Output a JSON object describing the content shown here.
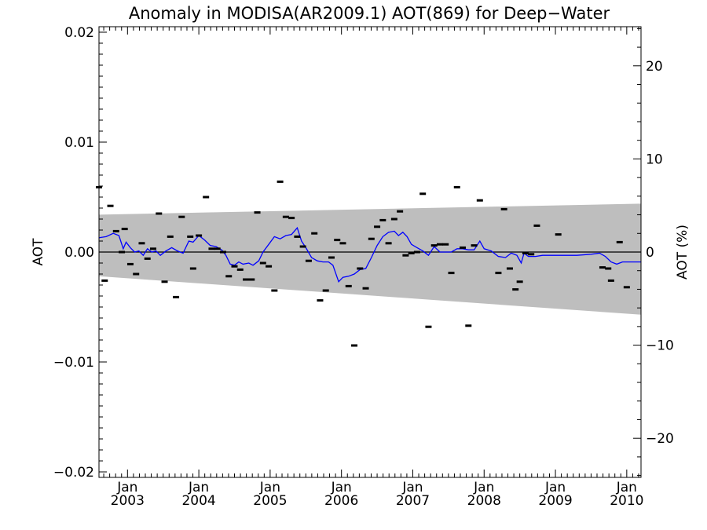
{
  "chart_data": {
    "type": "line",
    "title": "Anomaly in MODISA(AR2009.1) AOT(869) for Deep−Water",
    "ylabel_left": "AOT",
    "ylabel_right": "AOT (%)",
    "xlim": [
      2002.6,
      2010.2
    ],
    "ylim_left": [
      -0.0205,
      0.0205
    ],
    "ylim_right": [
      -24.2,
      24.2
    ],
    "x_ticks": [
      {
        "x": 2003.0,
        "month": "Jan",
        "year": "2003"
      },
      {
        "x": 2004.0,
        "month": "Jan",
        "year": "2004"
      },
      {
        "x": 2005.0,
        "month": "Jan",
        "year": "2005"
      },
      {
        "x": 2006.0,
        "month": "Jan",
        "year": "2006"
      },
      {
        "x": 2007.0,
        "month": "Jan",
        "year": "2007"
      },
      {
        "x": 2008.0,
        "month": "Jan",
        "year": "2008"
      },
      {
        "x": 2009.0,
        "month": "Jan",
        "year": "2009"
      },
      {
        "x": 2010.0,
        "month": "Jan",
        "year": "2010"
      }
    ],
    "y_ticks_left": [
      {
        "v": 0.02,
        "label": "0.02"
      },
      {
        "v": 0.01,
        "label": "0.01"
      },
      {
        "v": 0.0,
        "label": "0.00"
      },
      {
        "v": -0.01,
        "label": "−0.01"
      },
      {
        "v": -0.02,
        "label": "−0.02"
      }
    ],
    "y_ticks_right": [
      {
        "v": 20,
        "label": "20"
      },
      {
        "v": 10,
        "label": "10"
      },
      {
        "v": 0,
        "label": "0"
      },
      {
        "v": -10,
        "label": "−10"
      },
      {
        "v": -20,
        "label": "−20"
      }
    ],
    "band": {
      "x": [
        2002.6,
        2010.2
      ],
      "upper": [
        0.0034,
        0.0044
      ],
      "lower": [
        -0.0022,
        -0.0057
      ]
    },
    "points": [
      [
        2002.6,
        0.0059
      ],
      [
        2002.68,
        -0.0026
      ],
      [
        2002.76,
        0.0042
      ],
      [
        2002.84,
        0.0019
      ],
      [
        2002.92,
        0.0
      ],
      [
        2002.96,
        0.0021
      ],
      [
        2003.04,
        -0.0011
      ],
      [
        2003.12,
        -0.002
      ],
      [
        2003.2,
        0.0008
      ],
      [
        2003.28,
        -0.0006
      ],
      [
        2003.36,
        0.0003
      ],
      [
        2003.44,
        0.0035
      ],
      [
        2003.52,
        -0.0027
      ],
      [
        2003.6,
        0.0014
      ],
      [
        2003.68,
        -0.0041
      ],
      [
        2003.76,
        0.0032
      ],
      [
        2003.88,
        0.0014
      ],
      [
        2003.92,
        -0.0015
      ],
      [
        2004.0,
        0.0015
      ],
      [
        2004.1,
        0.005
      ],
      [
        2004.18,
        0.0003
      ],
      [
        2004.26,
        0.0003
      ],
      [
        2004.34,
        0.0
      ],
      [
        2004.42,
        -0.0022
      ],
      [
        2004.5,
        -0.0013
      ],
      [
        2004.58,
        -0.0016
      ],
      [
        2004.66,
        -0.0025
      ],
      [
        2004.74,
        -0.0025
      ],
      [
        2004.82,
        0.0036
      ],
      [
        2004.9,
        -0.001
      ],
      [
        2004.98,
        -0.0013
      ],
      [
        2005.06,
        -0.0035
      ],
      [
        2005.14,
        0.0064
      ],
      [
        2005.22,
        0.0032
      ],
      [
        2005.3,
        0.0031
      ],
      [
        2005.38,
        0.0014
      ],
      [
        2005.46,
        0.0005
      ],
      [
        2005.54,
        -0.0008
      ],
      [
        2005.62,
        0.0017
      ],
      [
        2005.7,
        -0.0044
      ],
      [
        2005.78,
        -0.0035
      ],
      [
        2005.86,
        -0.0005
      ],
      [
        2005.94,
        0.0011
      ],
      [
        2006.02,
        0.0008
      ],
      [
        2006.1,
        -0.0031
      ],
      [
        2006.18,
        -0.0085
      ],
      [
        2006.26,
        -0.0015
      ],
      [
        2006.34,
        -0.0033
      ],
      [
        2006.42,
        0.0012
      ],
      [
        2006.5,
        0.0023
      ],
      [
        2006.58,
        0.0029
      ],
      [
        2006.66,
        0.0008
      ],
      [
        2006.74,
        0.003
      ],
      [
        2006.82,
        0.0037
      ],
      [
        2006.9,
        -0.0003
      ],
      [
        2006.98,
        -0.0001
      ],
      [
        2007.06,
        0.0
      ],
      [
        2007.14,
        0.0053
      ],
      [
        2007.22,
        -0.0068
      ],
      [
        2007.3,
        0.0006
      ],
      [
        2007.38,
        0.0007
      ],
      [
        2007.46,
        0.0007
      ],
      [
        2007.54,
        -0.0019
      ],
      [
        2007.62,
        0.0059
      ],
      [
        2007.7,
        0.0004
      ],
      [
        2007.78,
        -0.0067
      ],
      [
        2007.86,
        0.0006
      ],
      [
        2007.94,
        0.0047
      ],
      [
        2008.2,
        -0.0019
      ],
      [
        2008.28,
        0.0039
      ],
      [
        2008.36,
        -0.0015
      ],
      [
        2008.44,
        -0.0034
      ],
      [
        2008.5,
        -0.0027
      ],
      [
        2008.58,
        -0.0001
      ],
      [
        2008.66,
        -0.0002
      ],
      [
        2008.74,
        0.0024
      ],
      [
        2009.04,
        0.0016
      ],
      [
        2009.66,
        -0.0014
      ],
      [
        2009.74,
        -0.0015
      ],
      [
        2009.78,
        -0.0026
      ],
      [
        2009.9,
        0.0009
      ],
      [
        2010.0,
        -0.0032
      ]
    ],
    "line": [
      [
        2002.6,
        0.0013
      ],
      [
        2002.7,
        0.0014
      ],
      [
        2002.8,
        0.0017
      ],
      [
        2002.88,
        0.0015
      ],
      [
        2002.94,
        0.0003
      ],
      [
        2002.98,
        0.0009
      ],
      [
        2003.04,
        0.0004
      ],
      [
        2003.1,
        0.0
      ],
      [
        2003.16,
        0.0001
      ],
      [
        2003.22,
        -0.0003
      ],
      [
        2003.28,
        0.0003
      ],
      [
        2003.34,
        0.0
      ],
      [
        2003.4,
        0.0001
      ],
      [
        2003.46,
        -0.0003
      ],
      [
        2003.54,
        0.0001
      ],
      [
        2003.62,
        0.0004
      ],
      [
        2003.7,
        0.0001
      ],
      [
        2003.78,
        -0.0001
      ],
      [
        2003.86,
        0.001
      ],
      [
        2003.92,
        0.0009
      ],
      [
        2004.0,
        0.0015
      ],
      [
        2004.08,
        0.0011
      ],
      [
        2004.16,
        0.0006
      ],
      [
        2004.24,
        0.0005
      ],
      [
        2004.32,
        0.0002
      ],
      [
        2004.38,
        -0.0003
      ],
      [
        2004.44,
        -0.0011
      ],
      [
        2004.5,
        -0.0012
      ],
      [
        2004.56,
        -0.0009
      ],
      [
        2004.62,
        -0.0011
      ],
      [
        2004.7,
        -0.001
      ],
      [
        2004.76,
        -0.0012
      ],
      [
        2004.84,
        -0.0008
      ],
      [
        2004.9,
        0.0
      ],
      [
        2004.98,
        0.0007
      ],
      [
        2005.06,
        0.0014
      ],
      [
        2005.14,
        0.0012
      ],
      [
        2005.22,
        0.0015
      ],
      [
        2005.3,
        0.0016
      ],
      [
        2005.38,
        0.0022
      ],
      [
        2005.44,
        0.001
      ],
      [
        2005.5,
        0.0004
      ],
      [
        2005.58,
        -0.0005
      ],
      [
        2005.66,
        -0.0008
      ],
      [
        2005.74,
        -0.0009
      ],
      [
        2005.82,
        -0.0009
      ],
      [
        2005.88,
        -0.0012
      ],
      [
        2005.96,
        -0.0027
      ],
      [
        2006.02,
        -0.0023
      ],
      [
        2006.1,
        -0.0022
      ],
      [
        2006.18,
        -0.002
      ],
      [
        2006.26,
        -0.0016
      ],
      [
        2006.34,
        -0.0015
      ],
      [
        2006.42,
        -0.0005
      ],
      [
        2006.5,
        0.0006
      ],
      [
        2006.58,
        0.0014
      ],
      [
        2006.66,
        0.0018
      ],
      [
        2006.74,
        0.0019
      ],
      [
        2006.8,
        0.0015
      ],
      [
        2006.86,
        0.0018
      ],
      [
        2006.92,
        0.0014
      ],
      [
        2006.98,
        0.0007
      ],
      [
        2007.06,
        0.0004
      ],
      [
        2007.14,
        0.0001
      ],
      [
        2007.22,
        -0.0003
      ],
      [
        2007.3,
        0.0005
      ],
      [
        2007.38,
        0.0
      ],
      [
        2007.46,
        0.0
      ],
      [
        2007.54,
        0.0
      ],
      [
        2007.62,
        0.0003
      ],
      [
        2007.7,
        0.0003
      ],
      [
        2007.78,
        0.0002
      ],
      [
        2007.86,
        0.0002
      ],
      [
        2007.94,
        0.001
      ],
      [
        2008.0,
        0.0003
      ],
      [
        2008.1,
        0.0001
      ],
      [
        2008.2,
        -0.0004
      ],
      [
        2008.3,
        -0.0005
      ],
      [
        2008.38,
        -0.0001
      ],
      [
        2008.46,
        -0.0003
      ],
      [
        2008.52,
        -0.001
      ],
      [
        2008.56,
        -0.0001
      ],
      [
        2008.62,
        -0.0004
      ],
      [
        2008.72,
        -0.0004
      ],
      [
        2008.82,
        -0.0003
      ],
      [
        2008.92,
        -0.0003
      ],
      [
        2009.04,
        -0.0003
      ],
      [
        2009.3,
        -0.0003
      ],
      [
        2009.5,
        -0.0002
      ],
      [
        2009.62,
        -0.0001
      ],
      [
        2009.7,
        -0.0004
      ],
      [
        2009.78,
        -0.0009
      ],
      [
        2009.86,
        -0.0011
      ],
      [
        2009.94,
        -0.0009
      ],
      [
        2010.2,
        -0.0009
      ]
    ],
    "colors": {
      "band": "#bebebe",
      "line": "#0000ff",
      "points": "#000000",
      "zero": "#000000",
      "axes": "#000000"
    }
  }
}
